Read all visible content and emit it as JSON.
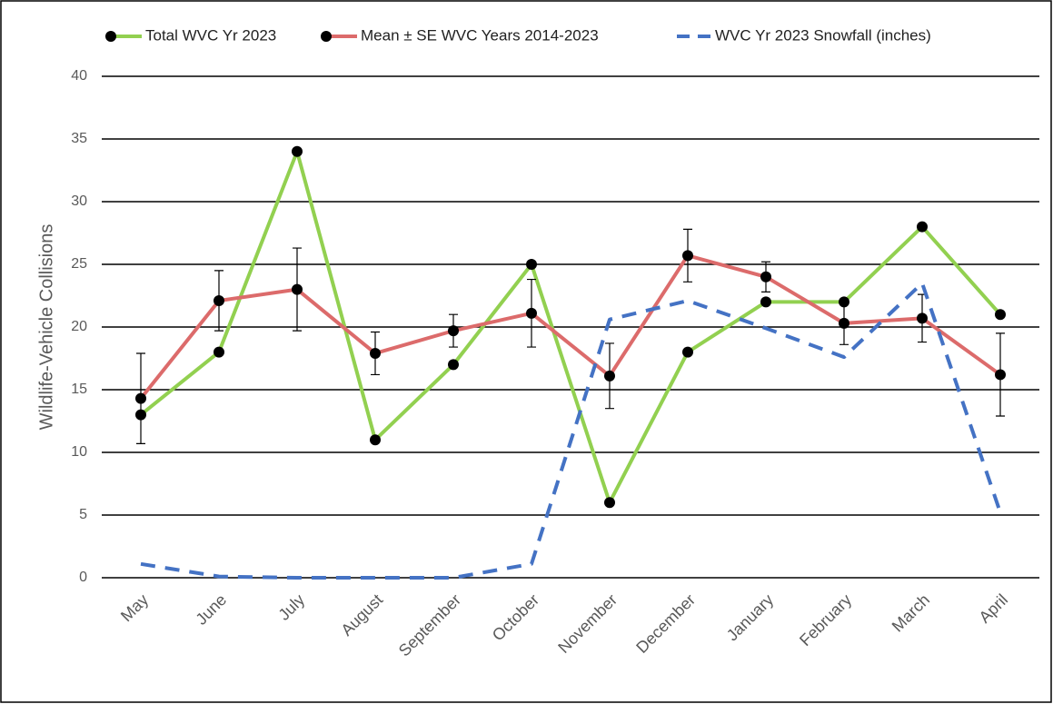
{
  "chart_data": {
    "type": "line",
    "ylabel": "Wildlife-Vehicle Collisions",
    "categories": [
      "May",
      "June",
      "July",
      "August",
      "September",
      "October",
      "November",
      "December",
      "January",
      "February",
      "March",
      "April"
    ],
    "series": [
      {
        "name": "Total WVC Yr 2023",
        "color": "#92d050",
        "marker": true,
        "dash": false,
        "values": [
          13,
          18,
          34,
          11,
          17,
          25,
          6,
          18,
          22,
          22,
          28,
          21
        ]
      },
      {
        "name": "Mean ± SE WVC Years 2014-2023",
        "color": "#dc6b6b",
        "marker": true,
        "dash": false,
        "values": [
          14.3,
          22.1,
          23,
          17.9,
          19.7,
          21.1,
          16.1,
          25.7,
          24,
          20.3,
          20.7,
          16.2
        ],
        "errors": [
          3.6,
          2.4,
          3.3,
          1.7,
          1.3,
          2.7,
          2.6,
          2.1,
          1.2,
          1.7,
          1.9,
          3.3
        ]
      },
      {
        "name": "WVC Yr 2023 Snowfall (inches)",
        "color": "#4472c4",
        "marker": false,
        "dash": true,
        "values": [
          1.1,
          0.1,
          0,
          0,
          0,
          1.1,
          20.6,
          22.1,
          19.9,
          17.6,
          23.5,
          5.2
        ]
      }
    ],
    "ylim": [
      0,
      40
    ],
    "yticks": [
      0,
      5,
      10,
      15,
      20,
      25,
      30,
      35,
      40
    ],
    "grid": true,
    "legend": "top"
  }
}
